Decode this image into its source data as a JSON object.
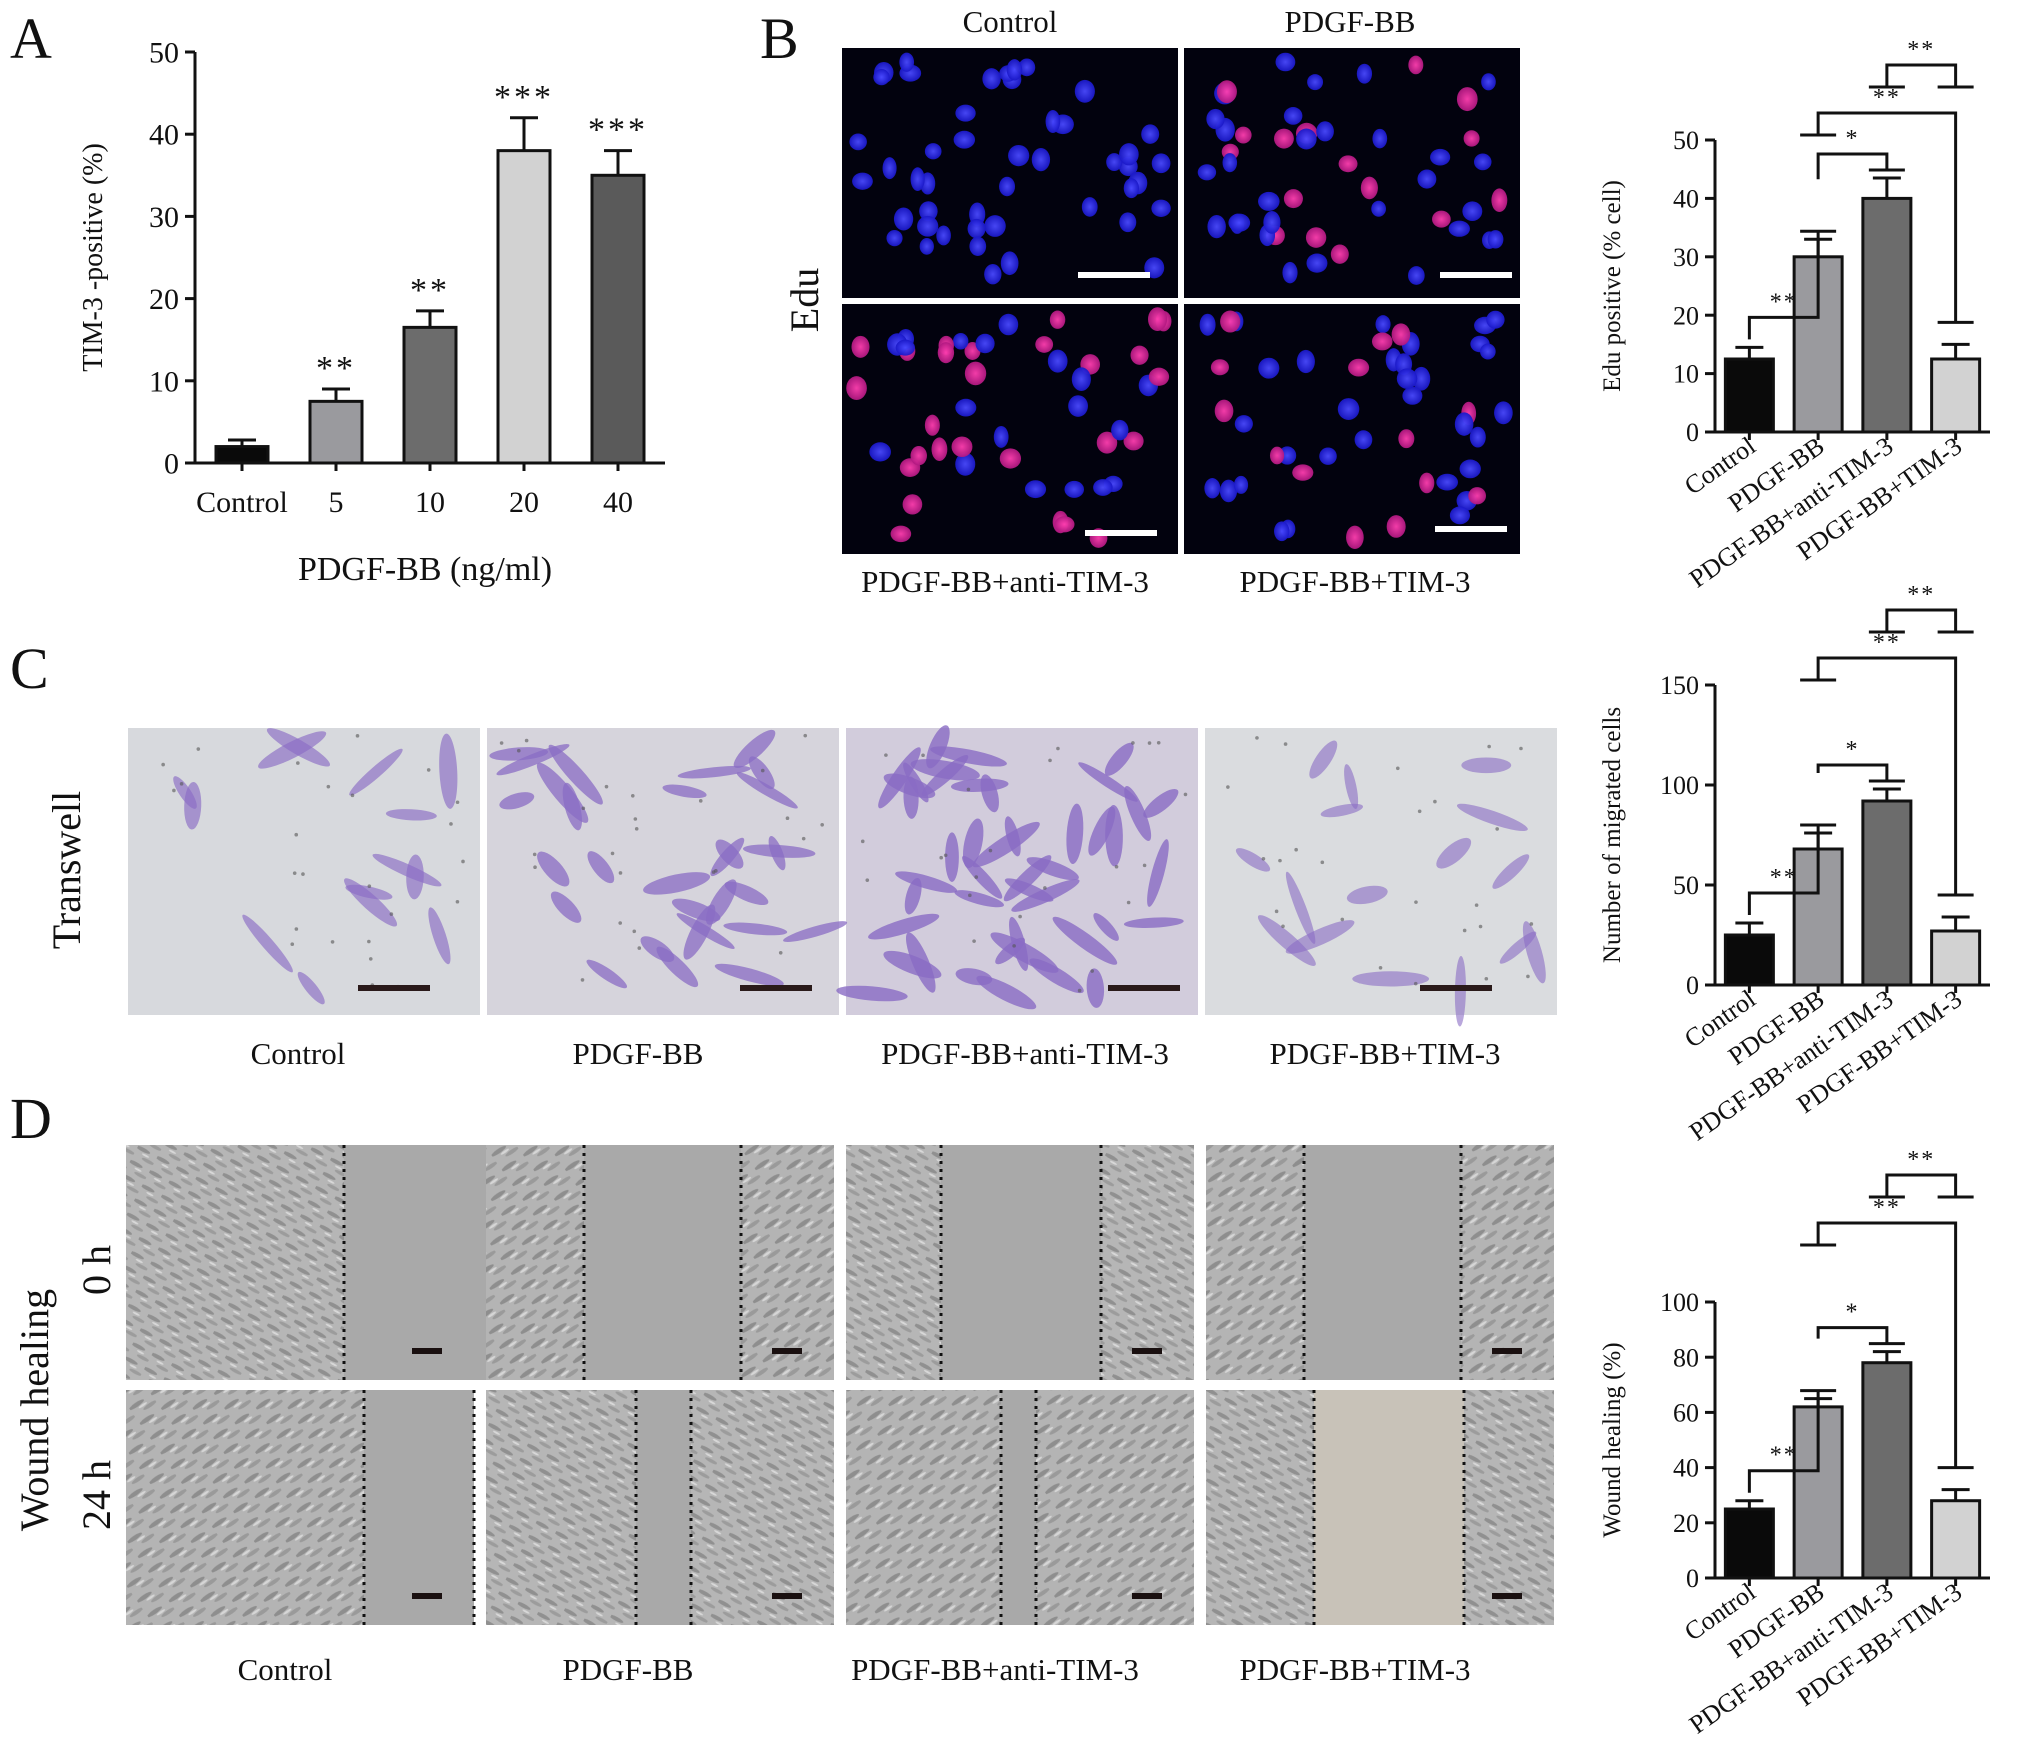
{
  "panel_labels": [
    "A",
    "B",
    "C",
    "D"
  ],
  "colors": {
    "black": "#0a0a0a",
    "mid_gray": "#9a9a9e",
    "dark_gray": "#6c6c6c",
    "light_gray": "#d2d2d2",
    "edu_bg": "#02020e",
    "nucleus_blue": "#2020e0",
    "nucleus_pink": "#e0208a",
    "transwell_bg": "#d7d9dd",
    "transwell_cell": "#8a6cc4",
    "phase_bg": "#a8a8a8"
  },
  "panel_a": {
    "xlabel": "PDGF-BB (ng/ml)"
  },
  "panel_b": {
    "row_label": "Edu",
    "captions": [
      "Control",
      "PDGF-BB",
      "PDGF-BB+anti-TIM-3",
      "PDGF-BB+TIM-3"
    ]
  },
  "panel_c": {
    "row_label": "Transwell",
    "captions": [
      "Control",
      "PDGF-BB",
      "PDGF-BB+anti-TIM-3",
      "PDGF-BB+TIM-3"
    ]
  },
  "panel_d": {
    "row_label": "Wound healing",
    "time_labels": [
      "0 h",
      "24 h"
    ],
    "captions": [
      "Control",
      "PDGF-BB",
      "PDGF-BB+anti-TIM-3",
      "PDGF-BB+TIM-3"
    ]
  },
  "chart_data": [
    {
      "id": "A",
      "type": "bar",
      "categories": [
        "Control",
        "5",
        "10",
        "20",
        "40"
      ],
      "values": [
        2,
        7.5,
        16.5,
        38,
        35
      ],
      "errors": [
        0.8,
        1.5,
        2,
        4,
        3
      ],
      "colors": [
        "#0a0a0a",
        "#9a9a9e",
        "#6c6c6c",
        "#d2d2d2",
        "#5a5a5a"
      ],
      "sig": [
        "",
        "**",
        "**",
        "***",
        "***"
      ],
      "ylabel": "TIM-3 -positive (%)",
      "xlabel": "PDGF-BB (ng/ml)",
      "ylim": [
        0,
        50
      ],
      "yticks": [
        0,
        10,
        20,
        30,
        40,
        50
      ]
    },
    {
      "id": "B",
      "type": "bar",
      "categories": [
        "Control",
        "PDGF-BB",
        "PDGF-BB+anti-TIM-3",
        "PDGF-BB+TIM-3"
      ],
      "values": [
        12.5,
        30,
        40,
        12.5
      ],
      "errors": [
        2,
        3,
        3.5,
        2.5
      ],
      "colors": [
        "#0a0a0a",
        "#9a9a9e",
        "#6c6c6c",
        "#d2d2d2"
      ],
      "ylabel": "Edu positive (% cell)",
      "ylim": [
        0,
        50
      ],
      "yticks": [
        0,
        10,
        20,
        30,
        40,
        50
      ],
      "brackets": [
        {
          "from": 0,
          "to": 1,
          "label": "**"
        },
        {
          "from": 1,
          "to": 2,
          "label": "*"
        },
        {
          "from": 1,
          "to": 3,
          "label": "**"
        },
        {
          "from": 2,
          "to": 3,
          "label": "**"
        }
      ]
    },
    {
      "id": "C",
      "type": "bar",
      "categories": [
        "Control",
        "PDGF-BB",
        "PDGF-BB+anti-TIM-3",
        "PDGF-BB+TIM-3"
      ],
      "values": [
        25,
        68,
        92,
        27
      ],
      "errors": [
        6,
        8,
        6,
        7
      ],
      "colors": [
        "#0a0a0a",
        "#9a9a9e",
        "#6c6c6c",
        "#d2d2d2"
      ],
      "ylabel": "Number of migrated cells",
      "ylim": [
        0,
        150
      ],
      "yticks": [
        0,
        50,
        100,
        150
      ],
      "brackets": [
        {
          "from": 0,
          "to": 1,
          "label": "**"
        },
        {
          "from": 1,
          "to": 2,
          "label": "*"
        },
        {
          "from": 1,
          "to": 3,
          "label": "**"
        },
        {
          "from": 2,
          "to": 3,
          "label": "**"
        }
      ]
    },
    {
      "id": "D",
      "type": "bar",
      "categories": [
        "Control",
        "PDGF-BB",
        "PDGF-BB+anti-TIM-3",
        "PDGF-BB+TIM-3"
      ],
      "values": [
        25,
        62,
        78,
        28
      ],
      "errors": [
        3,
        3,
        4,
        4
      ],
      "colors": [
        "#0a0a0a",
        "#9a9a9e",
        "#6c6c6c",
        "#d2d2d2"
      ],
      "ylabel": "Wound healing (%)",
      "ylim": [
        0,
        100
      ],
      "yticks": [
        0,
        20,
        40,
        60,
        80,
        100
      ],
      "brackets": [
        {
          "from": 0,
          "to": 1,
          "label": "**"
        },
        {
          "from": 1,
          "to": 2,
          "label": "*"
        },
        {
          "from": 1,
          "to": 3,
          "label": "**"
        },
        {
          "from": 2,
          "to": 3,
          "label": "**"
        }
      ]
    }
  ]
}
